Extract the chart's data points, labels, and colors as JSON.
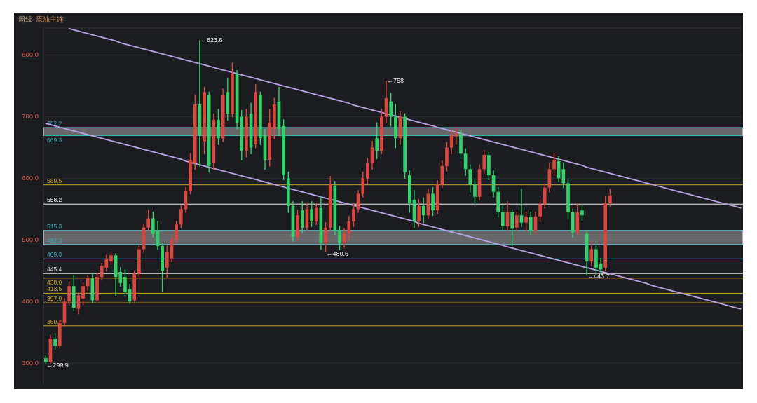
{
  "chart_data": {
    "type": "candlestick",
    "title": "周线",
    "subtitle": "原油主连",
    "categories": [
      null,
      null,
      null,
      null,
      null,
      null,
      null,
      null,
      null,
      null,
      null,
      null,
      null,
      null,
      null,
      null,
      null,
      null,
      null,
      null,
      null,
      null,
      null,
      null,
      null,
      null,
      null,
      null,
      null,
      null,
      null,
      null,
      null,
      null,
      null,
      null,
      null,
      null,
      null,
      null,
      null,
      null,
      null,
      null,
      null,
      null,
      null,
      null,
      null,
      null,
      null,
      null,
      null,
      null,
      null,
      null,
      null,
      null,
      null,
      null,
      null,
      null,
      null,
      null,
      null,
      null,
      null,
      null,
      null,
      null,
      null,
      null,
      null,
      null,
      null,
      null,
      null,
      null,
      null,
      null,
      null,
      null,
      null,
      null,
      null,
      null,
      null,
      null,
      null,
      null,
      null,
      null,
      null,
      null,
      null,
      null,
      null,
      null,
      null,
      null,
      null,
      null,
      null,
      null,
      null,
      null,
      null,
      null,
      null,
      null,
      null,
      null,
      null,
      null,
      null,
      null,
      null,
      null,
      null,
      null,
      null,
      null,
      null,
      null,
      null,
      null,
      null,
      null,
      null,
      null,
      null,
      null,
      null,
      null,
      null,
      null,
      null,
      null,
      null,
      null,
      null,
      null,
      null,
      null,
      null,
      null,
      null,
      null,
      null,
      null
    ],
    "ohlc": [
      [
        308,
        312,
        299.9,
        302
      ],
      [
        302,
        345,
        300,
        340
      ],
      [
        340,
        348,
        322,
        328
      ],
      [
        328,
        370,
        325,
        365
      ],
      [
        365,
        405,
        360,
        400
      ],
      [
        400,
        432,
        395,
        425
      ],
      [
        425,
        442,
        385,
        390
      ],
      [
        388,
        415,
        380,
        410
      ],
      [
        405,
        430,
        395,
        425
      ],
      [
        425,
        442,
        418,
        438
      ],
      [
        438,
        445,
        398,
        402
      ],
      [
        402,
        445,
        400,
        440
      ],
      [
        440,
        462,
        435,
        458
      ],
      [
        455,
        475,
        450,
        470
      ],
      [
        465,
        480,
        460,
        475
      ],
      [
        475,
        478,
        410,
        440
      ],
      [
        448,
        455,
        425,
        430
      ],
      [
        440,
        452,
        410,
        415
      ],
      [
        420,
        428,
        397,
        400
      ],
      [
        402,
        450,
        400,
        445
      ],
      [
        445,
        490,
        440,
        485
      ],
      [
        485,
        525,
        480,
        520
      ],
      [
        520,
        548,
        515,
        535
      ],
      [
        535,
        545,
        505,
        510
      ],
      [
        515,
        530,
        485,
        490
      ],
      [
        490,
        495,
        417,
        450
      ],
      [
        455,
        490,
        440,
        480
      ],
      [
        470,
        505,
        465,
        500
      ],
      [
        500,
        530,
        495,
        525
      ],
      [
        525,
        555,
        520,
        550
      ],
      [
        550,
        585,
        545,
        580
      ],
      [
        580,
        640,
        575,
        630
      ],
      [
        625,
        735,
        615,
        720
      ],
      [
        720,
        823.6,
        620,
        670
      ],
      [
        660,
        748,
        640,
        740
      ],
      [
        735,
        740,
        610,
        620
      ],
      [
        625,
        705,
        615,
        695
      ],
      [
        695,
        712,
        655,
        665
      ],
      [
        665,
        745,
        660,
        735
      ],
      [
        740,
        762,
        695,
        705
      ],
      [
        705,
        787,
        700,
        770
      ],
      [
        770,
        775,
        680,
        690
      ],
      [
        700,
        710,
        630,
        645
      ],
      [
        645,
        712,
        635,
        700
      ],
      [
        705,
        722,
        640,
        650
      ],
      [
        655,
        752,
        650,
        740
      ],
      [
        735,
        740,
        655,
        665
      ],
      [
        670,
        680,
        615,
        630
      ],
      [
        630,
        712,
        620,
        690
      ],
      [
        680,
        730,
        665,
        720
      ],
      [
        725,
        748,
        670,
        680
      ],
      [
        685,
        695,
        598,
        605
      ],
      [
        600,
        610,
        545,
        555
      ],
      [
        555,
        562,
        498,
        505
      ],
      [
        505,
        548,
        500,
        540
      ],
      [
        548,
        562,
        512,
        520
      ],
      [
        520,
        560,
        515,
        550
      ],
      [
        550,
        562,
        522,
        530
      ],
      [
        530,
        560,
        525,
        552
      ],
      [
        552,
        570,
        485,
        495
      ],
      [
        495,
        528,
        480.6,
        520
      ],
      [
        520,
        603,
        515,
        590
      ],
      [
        588,
        595,
        508,
        515
      ],
      [
        515,
        522,
        485,
        495
      ],
      [
        495,
        518,
        488,
        510
      ],
      [
        510,
        538,
        500,
        530
      ],
      [
        530,
        558,
        522,
        550
      ],
      [
        550,
        580,
        545,
        575
      ],
      [
        575,
        610,
        570,
        600
      ],
      [
        600,
        632,
        592,
        625
      ],
      [
        625,
        660,
        615,
        650
      ],
      [
        665,
        690,
        632,
        645
      ],
      [
        645,
        712,
        640,
        700
      ],
      [
        700,
        758,
        690,
        730
      ],
      [
        725,
        738,
        685,
        700
      ],
      [
        700,
        720,
        650,
        665
      ],
      [
        665,
        708,
        655,
        700
      ],
      [
        700,
        705,
        600,
        610
      ],
      [
        605,
        612,
        545,
        560
      ],
      [
        565,
        580,
        520,
        530
      ],
      [
        530,
        565,
        522,
        555
      ],
      [
        555,
        568,
        528,
        540
      ],
      [
        540,
        582,
        535,
        575
      ],
      [
        575,
        585,
        540,
        548
      ],
      [
        548,
        596,
        543,
        590
      ],
      [
        590,
        628,
        585,
        620
      ],
      [
        620,
        658,
        612,
        650
      ],
      [
        650,
        678,
        640,
        670
      ],
      [
        668,
        682,
        655,
        672
      ],
      [
        672,
        678,
        632,
        640
      ],
      [
        640,
        648,
        605,
        615
      ],
      [
        615,
        622,
        578,
        590
      ],
      [
        590,
        598,
        560,
        570
      ],
      [
        570,
        622,
        565,
        615
      ],
      [
        615,
        645,
        608,
        638
      ],
      [
        638,
        642,
        598,
        605
      ],
      [
        605,
        612,
        570,
        578
      ],
      [
        578,
        585,
        538,
        545
      ],
      [
        545,
        555,
        515,
        522
      ],
      [
        522,
        562,
        515,
        545
      ],
      [
        545,
        548,
        491,
        518
      ],
      [
        520,
        545,
        515,
        540
      ],
      [
        540,
        582,
        522,
        528
      ],
      [
        528,
        545,
        515,
        538
      ],
      [
        538,
        545,
        508,
        515
      ],
      [
        515,
        545,
        510,
        538
      ],
      [
        538,
        565,
        530,
        558
      ],
      [
        558,
        590,
        552,
        585
      ],
      [
        585,
        625,
        578,
        615
      ],
      [
        615,
        640,
        605,
        630
      ],
      [
        628,
        635,
        595,
        600
      ],
      [
        615,
        625,
        585,
        592
      ],
      [
        592,
        598,
        535,
        545
      ],
      [
        545,
        550,
        505,
        512
      ],
      [
        512,
        560,
        508,
        545
      ],
      [
        548,
        556,
        532,
        540
      ],
      [
        510,
        515,
        443.7,
        465
      ],
      [
        465,
        498,
        458,
        485
      ],
      [
        485,
        490,
        448,
        455
      ],
      [
        462,
        470,
        446,
        452
      ],
      [
        455,
        570,
        450,
        560
      ],
      [
        560,
        582,
        555,
        572
      ],
      null,
      null,
      null,
      null,
      null,
      null,
      null,
      null,
      null,
      null,
      null,
      null,
      null,
      null,
      null,
      null,
      null,
      null,
      null,
      null,
      null,
      null,
      null,
      null,
      null,
      null,
      null,
      null
    ],
    "colors": [
      "#2ed46a",
      "#e0453d",
      "#2ed46a",
      "#e0453d",
      "#e0453d",
      "#e0453d",
      "#2ed46a",
      "#e0453d",
      "#e0453d",
      "#e0453d",
      "#2ed46a",
      "#e0453d",
      "#e0453d",
      "#e0453d",
      "#e0453d",
      "#2ed46a",
      "#2ed46a",
      "#2ed46a",
      "#2ed46a",
      "#e0453d",
      "#e0453d",
      "#e0453d",
      "#e0453d",
      "#2ed46a",
      "#2ed46a",
      "#2ed46a",
      "#e0453d",
      "#e0453d",
      "#e0453d",
      "#e0453d",
      "#e0453d",
      "#e0453d",
      "#e0453d",
      "#2ed46a",
      "#e0453d",
      "#2ed46a",
      "#e0453d",
      "#2ed46a",
      "#e0453d",
      "#2ed46a",
      "#e0453d",
      "#2ed46a",
      "#2ed46a",
      "#e0453d",
      "#2ed46a",
      "#e0453d",
      "#2ed46a",
      "#2ed46a",
      "#e0453d",
      "#e0453d",
      "#2ed46a",
      "#2ed46a",
      "#2ed46a",
      "#2ed46a",
      "#e0453d",
      "#2ed46a",
      "#e0453d",
      "#2ed46a",
      "#e0453d",
      "#2ed46a",
      "#e0453d",
      "#e0453d",
      "#2ed46a",
      "#2ed46a",
      "#e0453d",
      "#e0453d",
      "#e0453d",
      "#e0453d",
      "#e0453d",
      "#e0453d",
      "#e0453d",
      "#2ed46a",
      "#e0453d",
      "#e0453d",
      "#2ed46a",
      "#2ed46a",
      "#e0453d",
      "#2ed46a",
      "#2ed46a",
      "#2ed46a",
      "#e0453d",
      "#2ed46a",
      "#e0453d",
      "#2ed46a",
      "#e0453d",
      "#e0453d",
      "#e0453d",
      "#e0453d",
      "#e0453d",
      "#2ed46a",
      "#2ed46a",
      "#2ed46a",
      "#2ed46a",
      "#e0453d",
      "#e0453d",
      "#2ed46a",
      "#2ed46a",
      "#2ed46a",
      "#2ed46a",
      "#e0453d",
      "#2ed46a",
      "#e0453d",
      "#2ed46a",
      "#e0453d",
      "#2ed46a",
      "#e0453d",
      "#e0453d",
      "#e0453d",
      "#e0453d",
      "#e0453d",
      "#2ed46a",
      "#2ed46a",
      "#2ed46a",
      "#2ed46a",
      "#e0453d",
      "#2ed46a",
      "#2ed46a",
      "#e0453d",
      "#2ed46a",
      "#2ed46a",
      "#e0453d",
      "#e0453d",
      null,
      null,
      null,
      null,
      null,
      null,
      null,
      null,
      null,
      null,
      null,
      null,
      null,
      null,
      null,
      null,
      null,
      null,
      null,
      null,
      null,
      null,
      null,
      null,
      null,
      null,
      null,
      null
    ],
    "series": [
      {
        "type": "line",
        "color": "#b9a3e3",
        "values": [
          null,
          null,
          null,
          null,
          null,
          843,
          841,
          839,
          837,
          835,
          833,
          831,
          829,
          827,
          825,
          823,
          820,
          818,
          816,
          814,
          812,
          810,
          808,
          806,
          804,
          802,
          800,
          798,
          796,
          794,
          792,
          790,
          788,
          786,
          784,
          782,
          780,
          778,
          776,
          774,
          772,
          770,
          768,
          766,
          764,
          762,
          760,
          758,
          756,
          754,
          752,
          750,
          748,
          746,
          744,
          742,
          740,
          738,
          736,
          734,
          732,
          730,
          728,
          726,
          724,
          722,
          719,
          717,
          715,
          713,
          711,
          709,
          707,
          705,
          703,
          701,
          699,
          697,
          695,
          693,
          691,
          689,
          687,
          685,
          683,
          681,
          679,
          677,
          675,
          673,
          671,
          669,
          667,
          665,
          663,
          661,
          659,
          657,
          655,
          653,
          651,
          649,
          647,
          645,
          643,
          641,
          639,
          637,
          635,
          633,
          631,
          629,
          627,
          625,
          623,
          621,
          618,
          616,
          614,
          612,
          610,
          608,
          606,
          604,
          602,
          600,
          598,
          596,
          594,
          592,
          590,
          588,
          586,
          584,
          582,
          580,
          578,
          576,
          574,
          572,
          570,
          568,
          566,
          564,
          562,
          560,
          558,
          556,
          554,
          552
        ]
      },
      {
        "type": "line",
        "color": "#b9a3e3",
        "values": [
          689,
          687,
          685,
          683,
          681,
          679,
          677,
          675,
          673,
          671,
          669,
          667,
          665,
          663,
          661,
          659,
          657,
          655,
          653,
          651,
          649,
          647,
          645,
          643,
          641,
          639,
          637,
          635,
          633,
          631,
          628,
          626,
          624,
          622,
          620,
          618,
          616,
          614,
          612,
          610,
          608,
          606,
          604,
          602,
          600,
          598,
          596,
          594,
          592,
          590,
          588,
          586,
          584,
          582,
          580,
          578,
          576,
          574,
          572,
          570,
          568,
          566,
          564,
          562,
          560,
          558,
          556,
          554,
          552,
          550,
          548,
          546,
          544,
          542,
          540,
          538,
          536,
          534,
          532,
          530,
          527,
          525,
          523,
          521,
          519,
          517,
          515,
          513,
          511,
          509,
          507,
          505,
          503,
          501,
          499,
          497,
          495,
          493,
          491,
          489,
          487,
          485,
          483,
          481,
          479,
          477,
          475,
          473,
          471,
          469,
          467,
          465,
          463,
          461,
          459,
          457,
          455,
          453,
          451,
          449,
          447,
          445,
          443,
          441,
          439,
          437,
          435,
          433,
          431,
          429,
          426,
          424,
          422,
          420,
          418,
          416,
          414,
          412,
          410,
          408,
          406,
          404,
          402,
          400,
          398,
          396,
          394,
          392,
          390,
          388
        ]
      }
    ],
    "ylim": [
      266,
      844
    ],
    "yticks": [
      {
        "value": 300,
        "label": "300.0"
      },
      {
        "value": 400,
        "label": "400.0"
      },
      {
        "value": 500,
        "label": "500.0"
      },
      {
        "value": 600,
        "label": "600.0"
      },
      {
        "value": 700,
        "label": "700.0"
      },
      {
        "value": 800,
        "label": "800.0"
      }
    ],
    "grid": "y",
    "tick_labels": "y",
    "ref_lines": [
      {
        "axis": "y",
        "value": 682.2,
        "label": "682.2",
        "color": "#35a6b4"
      },
      {
        "axis": "y",
        "value": 669.3,
        "label": "669.3",
        "color": "#35a6b4"
      },
      {
        "axis": "y",
        "value": 589.5,
        "label": "589.5",
        "color": "#c9a227"
      },
      {
        "axis": "y",
        "value": 558.2,
        "label": "558.2",
        "color": "#eeeeee"
      },
      {
        "axis": "y",
        "value": 515.3,
        "label": "515.3",
        "color": "#35a6b4"
      },
      {
        "axis": "y",
        "value": 492.3,
        "label": "492.3",
        "color": "#35a6b4"
      },
      {
        "axis": "y",
        "value": 469.3,
        "label": "469.3",
        "color": "#35a6b4"
      },
      {
        "axis": "y",
        "value": 445.4,
        "label": "445.4",
        "color": "#d0d0d0"
      },
      {
        "axis": "y",
        "value": 438.0,
        "label": "438.0",
        "color": "#c9a227"
      },
      {
        "axis": "y",
        "value": 413.5,
        "label": "413.5",
        "color": "#c9a227"
      },
      {
        "axis": "y",
        "value": 397.9,
        "label": "397.9",
        "color": "#c9a227"
      },
      {
        "axis": "y",
        "value": 360.7,
        "label": "360.7",
        "color": "#c9a227"
      }
    ],
    "bands": [
      {
        "axis": "y",
        "from": 669.3,
        "to": 682.2,
        "color": "#c4c4c4"
      },
      {
        "axis": "y",
        "from": 492.3,
        "to": 515.3,
        "color": "#c4c4c4"
      }
    ],
    "annotations": [
      "←823.6",
      "←758",
      "←480.6",
      "←443.7",
      "←299.9"
    ]
  }
}
